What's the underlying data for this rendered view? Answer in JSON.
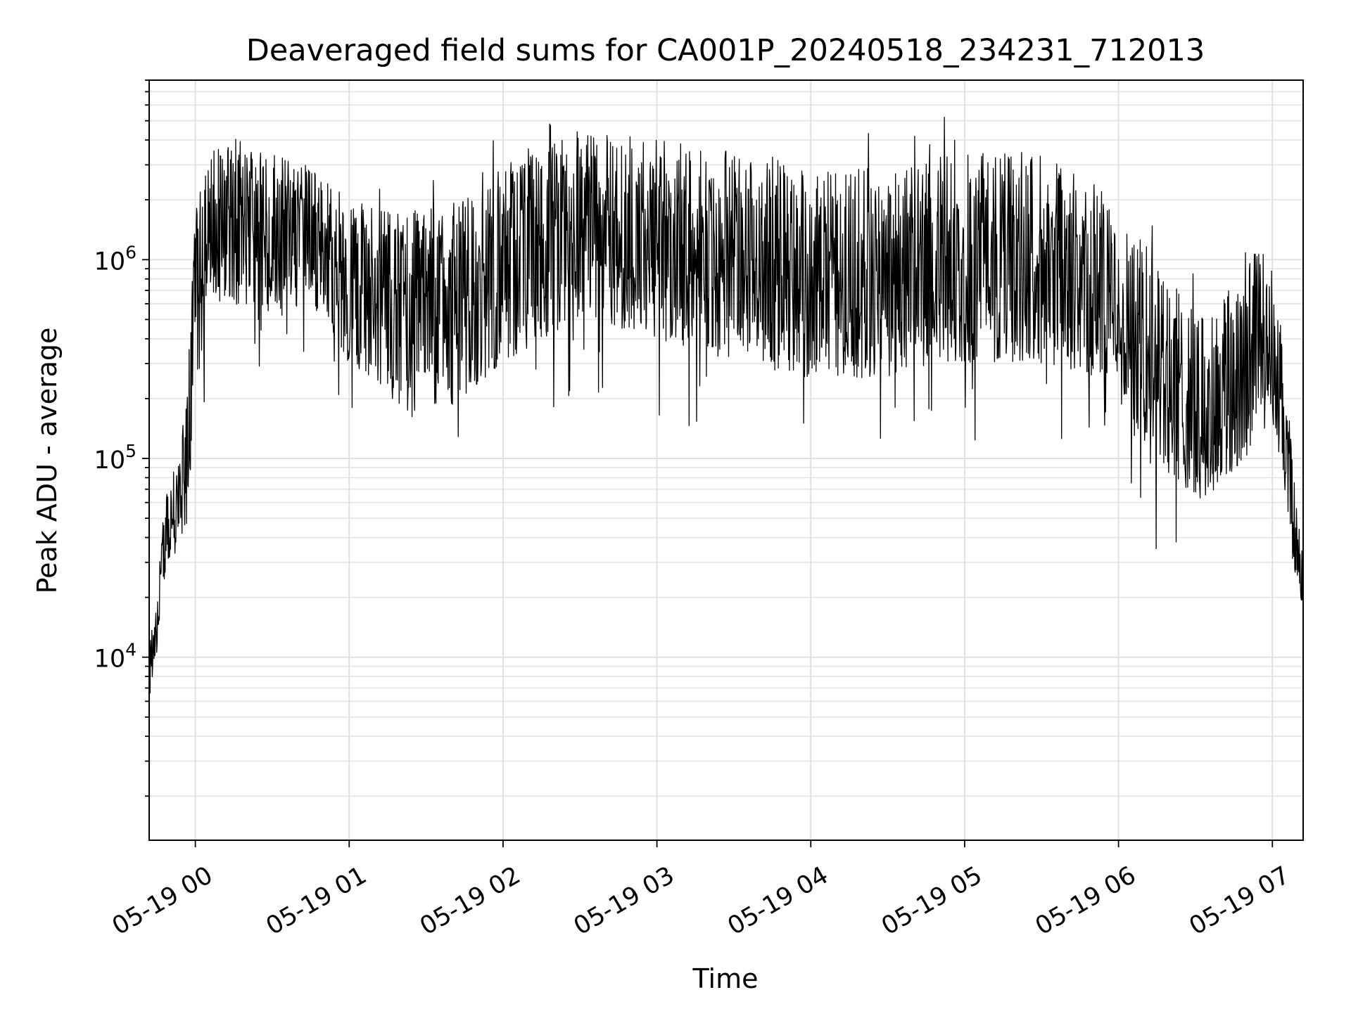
{
  "chart_data": {
    "type": "line",
    "title": "Deaveraged field sums for CA001P_20240518_234231_712013",
    "xlabel": "Time",
    "ylabel": "Peak ADU - average",
    "yscale": "log",
    "ylim": [
      1200,
      8000000
    ],
    "xlim": [
      "2024-05-18 23:42",
      "2024-05-19 07:12"
    ],
    "grid": "on (major and minor)",
    "line_color": "#000000",
    "x_ticks": [
      {
        "label": "05-19 00",
        "time": "2024-05-19 00:00"
      },
      {
        "label": "05-19 01",
        "time": "2024-05-19 01:00"
      },
      {
        "label": "05-19 02",
        "time": "2024-05-19 02:00"
      },
      {
        "label": "05-19 03",
        "time": "2024-05-19 03:00"
      },
      {
        "label": "05-19 04",
        "time": "2024-05-19 04:00"
      },
      {
        "label": "05-19 05",
        "time": "2024-05-19 05:00"
      },
      {
        "label": "05-19 06",
        "time": "2024-05-19 06:00"
      },
      {
        "label": "05-19 07",
        "time": "2024-05-19 07:00"
      }
    ],
    "y_ticks": [
      {
        "base": "10",
        "exp": "4",
        "value": 10000
      },
      {
        "base": "10",
        "exp": "5",
        "value": 100000
      },
      {
        "base": "10",
        "exp": "6",
        "value": 1000000
      }
    ],
    "series": [
      {
        "envelope": "dense noisy trace; median level and typical low/high excursions",
        "x": [
          "2024-05-18 23:42",
          "2024-05-18 23:45",
          "2024-05-18 23:48",
          "2024-05-18 23:51",
          "2024-05-18 23:54",
          "2024-05-18 23:57",
          "2024-05-19 00:00",
          "2024-05-19 00:06",
          "2024-05-19 00:15",
          "2024-05-19 00:30",
          "2024-05-19 00:45",
          "2024-05-19 01:00",
          "2024-05-19 01:15",
          "2024-05-19 01:30",
          "2024-05-19 01:45",
          "2024-05-19 02:00",
          "2024-05-19 02:30",
          "2024-05-19 03:00",
          "2024-05-19 03:30",
          "2024-05-19 04:00",
          "2024-05-19 04:30",
          "2024-05-19 05:00",
          "2024-05-19 05:30",
          "2024-05-19 05:50",
          "2024-05-19 06:05",
          "2024-05-19 06:20",
          "2024-05-19 06:35",
          "2024-05-19 06:50",
          "2024-05-19 06:58",
          "2024-05-19 07:03",
          "2024-05-19 07:08",
          "2024-05-19 07:12"
        ],
        "median": [
          9000,
          13000,
          40000,
          50000,
          60000,
          80000,
          600000,
          1500000,
          1600000,
          1300000,
          1400000,
          800000,
          700000,
          600000,
          650000,
          900000,
          1500000,
          1200000,
          1000000,
          800000,
          800000,
          1000000,
          1000000,
          800000,
          500000,
          250000,
          170000,
          300000,
          400000,
          200000,
          50000,
          20000
        ],
        "low": [
          6000,
          10000,
          25000,
          30000,
          40000,
          45000,
          200000,
          600000,
          600000,
          500000,
          600000,
          300000,
          200000,
          150000,
          200000,
          300000,
          500000,
          400000,
          300000,
          250000,
          250000,
          300000,
          300000,
          250000,
          150000,
          70000,
          60000,
          100000,
          200000,
          100000,
          30000,
          15000
        ],
        "high": [
          12000,
          20000,
          60000,
          100000,
          120000,
          250000,
          2500000,
          3500000,
          4500000,
          3500000,
          3000000,
          2000000,
          1800000,
          1800000,
          2000000,
          3000000,
          4500000,
          4000000,
          3500000,
          3000000,
          3000000,
          3500000,
          3500000,
          2500000,
          1500000,
          800000,
          500000,
          1000000,
          1200000,
          500000,
          100000,
          30000
        ]
      }
    ]
  }
}
